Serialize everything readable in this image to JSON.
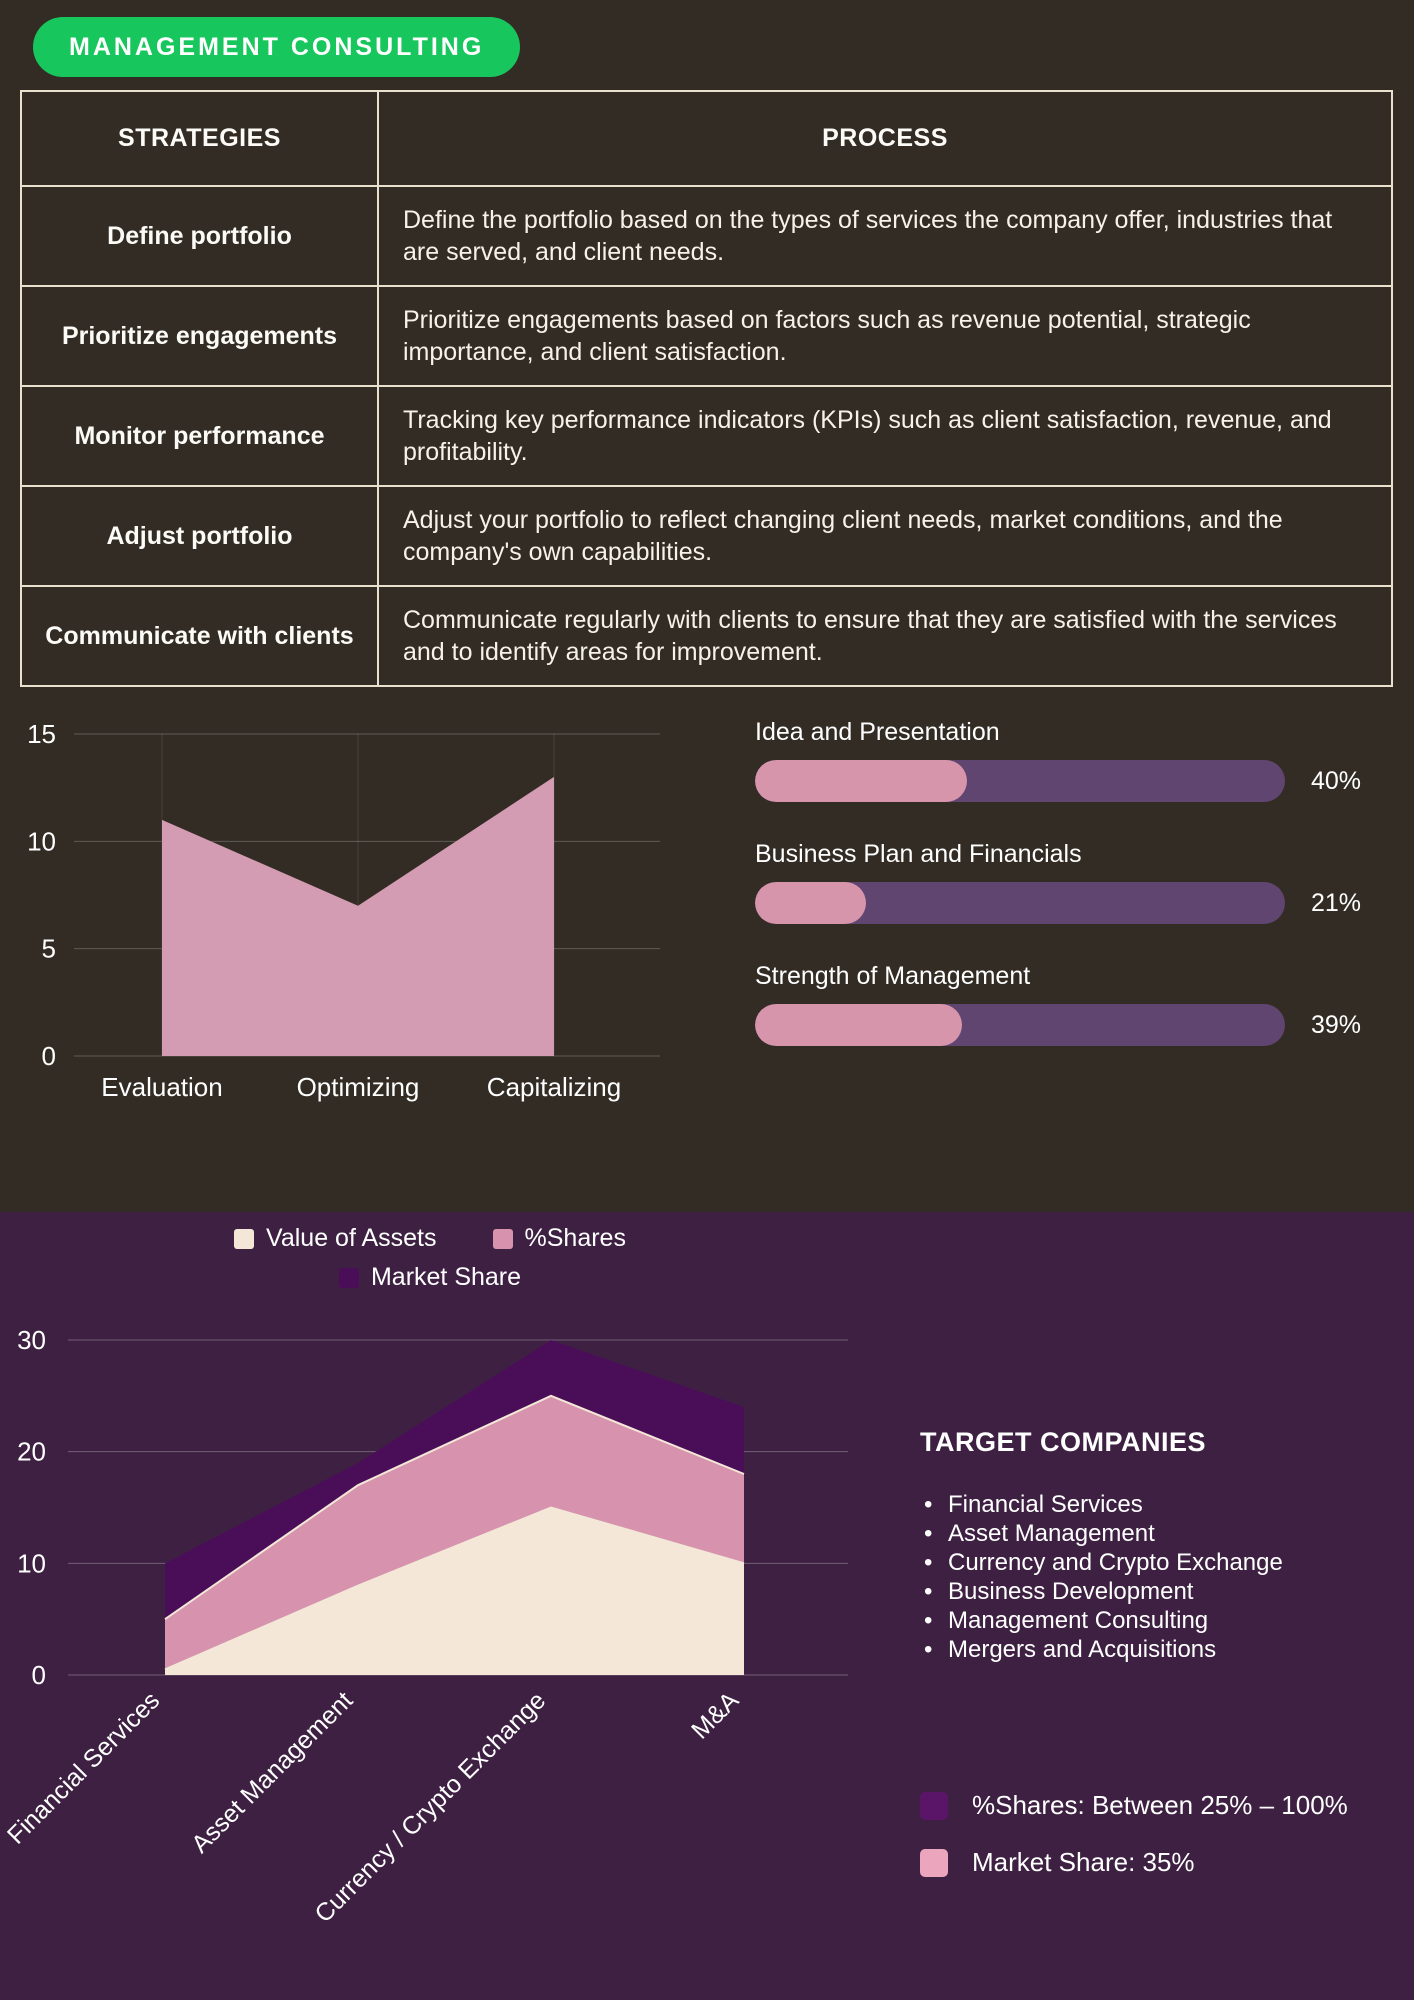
{
  "badge": {
    "label": "MANAGEMENT CONSULTING",
    "color": "#17c75d"
  },
  "table": {
    "headers": [
      "STRATEGIES",
      "PROCESS"
    ],
    "rows": [
      {
        "strategy": "Define portfolio",
        "process": "Define the portfolio based on the types of services the company offer, industries that are served, and client needs."
      },
      {
        "strategy": "Prioritize engagements",
        "process": "Prioritize engagements based on factors such as revenue potential, strategic importance, and client satisfaction."
      },
      {
        "strategy": "Monitor performance",
        "process": "Tracking key performance indicators (KPIs) such as client satisfaction, revenue, and profitability."
      },
      {
        "strategy": "Adjust portfolio",
        "process": "Adjust your portfolio to reflect changing client needs, market conditions, and the company's own capabilities."
      },
      {
        "strategy": "Communicate with clients",
        "process": "Communicate regularly with clients to ensure that they are satisfied with the services and to identify areas for improvement."
      }
    ]
  },
  "chart_data": [
    {
      "type": "area",
      "categories": [
        "Evaluation",
        "Optimizing",
        "Capitalizing"
      ],
      "values": [
        11,
        7,
        13
      ],
      "ylim": [
        0,
        15
      ],
      "yticks": [
        0,
        5,
        10,
        15
      ],
      "area_color": "#d49cb3",
      "grid": true
    },
    {
      "type": "bar",
      "orientation": "horizontal",
      "xlim": [
        0,
        100
      ],
      "track_color": "#5f4570",
      "fill_color": "#d795ab",
      "items": [
        {
          "label": "Idea and Presentation",
          "value": 40,
          "display": "40%"
        },
        {
          "label": "Business Plan and Financials",
          "value": 21,
          "display": "21%"
        },
        {
          "label": "Strength of Management",
          "value": 39,
          "display": "39%"
        }
      ]
    },
    {
      "type": "area",
      "categories": [
        "Financial Services",
        "Asset Management",
        "Currency / Crypto Exchange",
        "M&A"
      ],
      "series": [
        {
          "name": "Market Share",
          "values": [
            10,
            19,
            30,
            24
          ],
          "color": "#4a0e58"
        },
        {
          "name": "%Shares",
          "values": [
            5,
            17,
            25,
            18
          ],
          "color": "#d793ad"
        },
        {
          "name": "Value of Assets",
          "values": [
            0.5,
            8,
            15,
            10
          ],
          "color": "#f4e7d7"
        }
      ],
      "ylim": [
        0,
        30
      ],
      "yticks": [
        0,
        10,
        20,
        30
      ],
      "grid": true,
      "legend_position": "top",
      "legend": [
        {
          "label": "Value of Assets",
          "color": "#f4e7d7"
        },
        {
          "label": "%Shares",
          "color": "#d793ad"
        },
        {
          "label": "Market Share",
          "color": "#4a0e58"
        }
      ]
    }
  ],
  "target_companies": {
    "title": "TARGET COMPANIES",
    "items": [
      "Financial Services",
      "Asset Management",
      "Currency and Crypto Exchange",
      "Business Development",
      "Management Consulting",
      "Mergers and Acquisitions"
    ]
  },
  "bottom_legend": [
    {
      "label": "%Shares: Between 25% – 100%",
      "color": "#5a1468"
    },
    {
      "label": "Market Share: 35%",
      "color": "#eba6bd"
    }
  ]
}
